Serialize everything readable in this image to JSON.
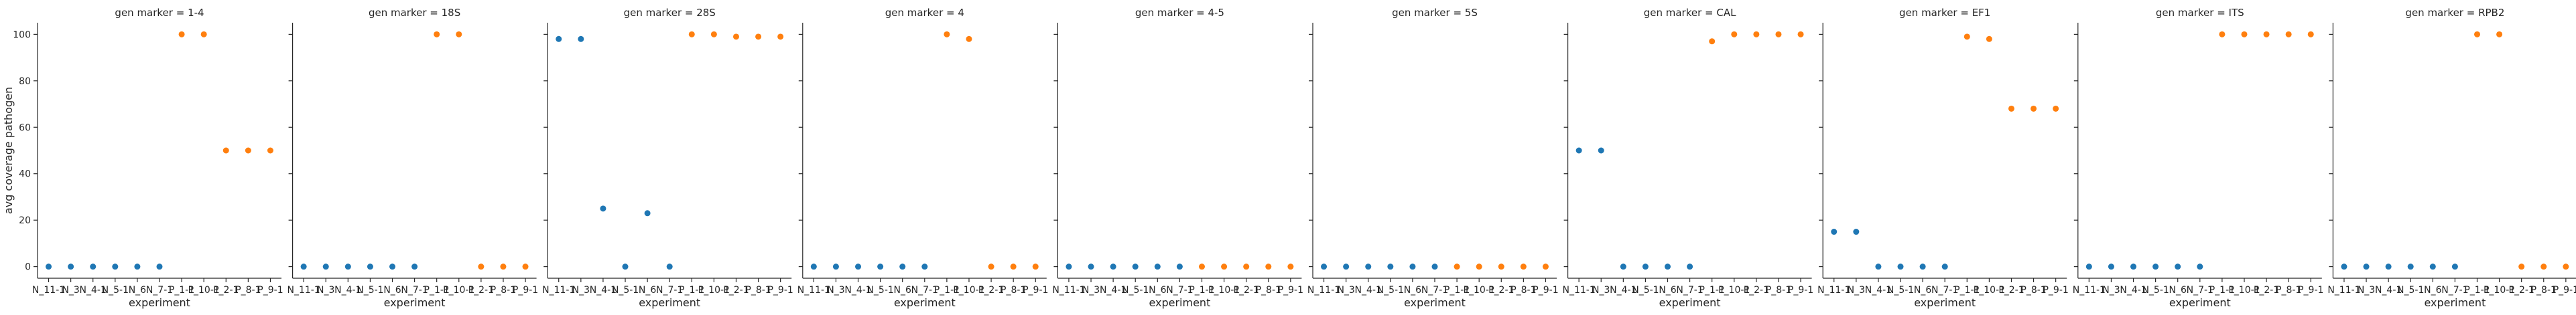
{
  "chart_data": {
    "type": "scatter",
    "facet_prefix": "gen marker = ",
    "ylabel": "avg coverage pathogen",
    "xlabel": "experiment",
    "ylim": [
      -5,
      105
    ],
    "yticks": [
      0,
      20,
      40,
      60,
      80,
      100
    ],
    "ytick_labels": [
      "0",
      "20",
      "40",
      "60",
      "80",
      "100"
    ],
    "grid": false,
    "categories": [
      "N_11-1",
      "N_3",
      "N_4-1",
      "N_5-1",
      "N_6",
      "N_7-1",
      "P_1-1",
      "P_10-1",
      "P_2-1",
      "P_8-1",
      "P_9-1"
    ],
    "colors": {
      "N": "#1f77b4",
      "P": "#ff7f0e"
    },
    "panels": [
      {
        "marker": "1-4",
        "N": [
          0,
          0,
          0,
          0,
          0,
          0
        ],
        "P": [
          100,
          100,
          50,
          50,
          50
        ]
      },
      {
        "marker": "18S",
        "N": [
          0,
          0,
          0,
          0,
          0,
          0
        ],
        "P": [
          100,
          100,
          0,
          0,
          0
        ]
      },
      {
        "marker": "28S",
        "N": [
          98,
          98,
          25,
          0,
          23,
          0
        ],
        "P": [
          100,
          100,
          99,
          99,
          99
        ]
      },
      {
        "marker": "4",
        "N": [
          0,
          0,
          0,
          0,
          0,
          0
        ],
        "P": [
          100,
          98,
          0,
          0,
          0
        ]
      },
      {
        "marker": "4-5",
        "N": [
          0,
          0,
          0,
          0,
          0,
          0
        ],
        "P": [
          0,
          0,
          0,
          0,
          0
        ]
      },
      {
        "marker": "5S",
        "N": [
          0,
          0,
          0,
          0,
          0,
          0
        ],
        "P": [
          0,
          0,
          0,
          0,
          0
        ]
      },
      {
        "marker": "CAL",
        "N": [
          50,
          50,
          0,
          0,
          0,
          0
        ],
        "P": [
          97,
          100,
          100,
          100,
          100
        ]
      },
      {
        "marker": "EF1",
        "N": [
          15,
          15,
          0,
          0,
          0,
          0
        ],
        "P": [
          99,
          98,
          68,
          68,
          68
        ]
      },
      {
        "marker": "ITS",
        "N": [
          0,
          0,
          0,
          0,
          0,
          0
        ],
        "P": [
          100,
          100,
          100,
          100,
          100
        ]
      },
      {
        "marker": "RPB2",
        "N": [
          0,
          0,
          0,
          0,
          0,
          0
        ],
        "P": [
          100,
          100,
          0,
          0,
          0
        ]
      }
    ]
  }
}
